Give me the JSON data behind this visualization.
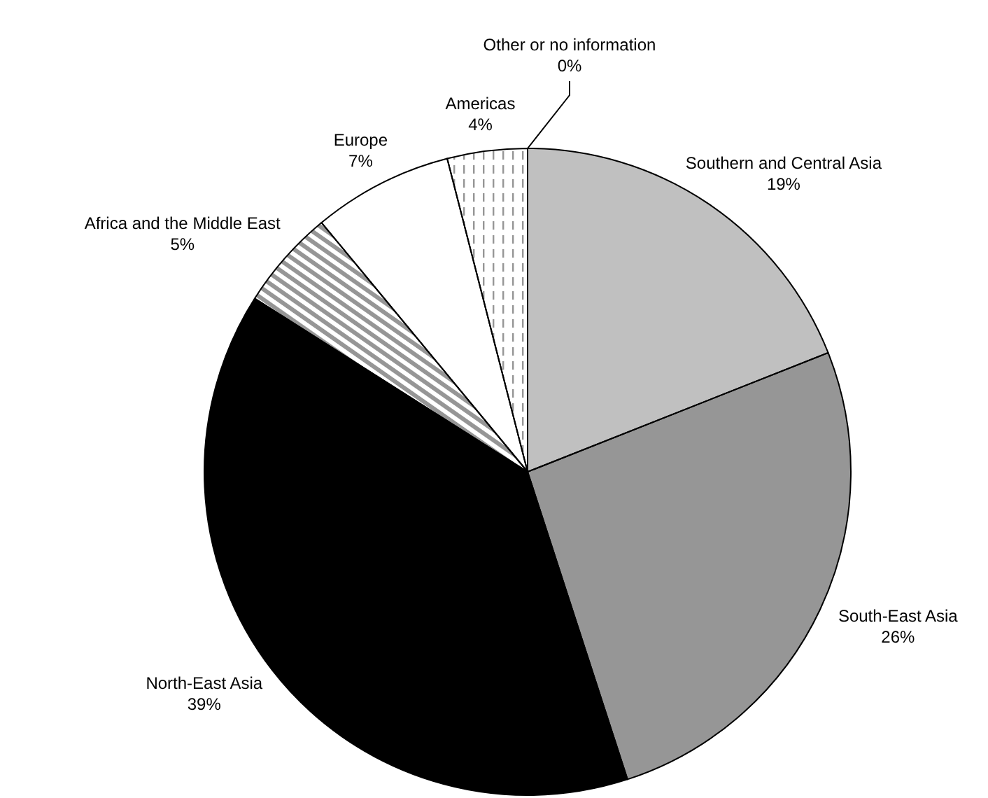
{
  "chart_data": {
    "type": "pie",
    "categories": [
      "Southern and Central Asia",
      "South-East Asia",
      "North-East Asia",
      "Africa and the Middle East",
      "Europe",
      "Americas",
      "Other or no information"
    ],
    "values": [
      19,
      26,
      39,
      5,
      7,
      4,
      0
    ],
    "value_labels": [
      "19%",
      "26%",
      "39%",
      "5%",
      "7%",
      "4%",
      "0%"
    ],
    "colors": [
      "#c0c0c0",
      "#969696",
      "#000000",
      "#969696",
      "#ffffff",
      "#969696",
      "#c0c0c0"
    ]
  }
}
